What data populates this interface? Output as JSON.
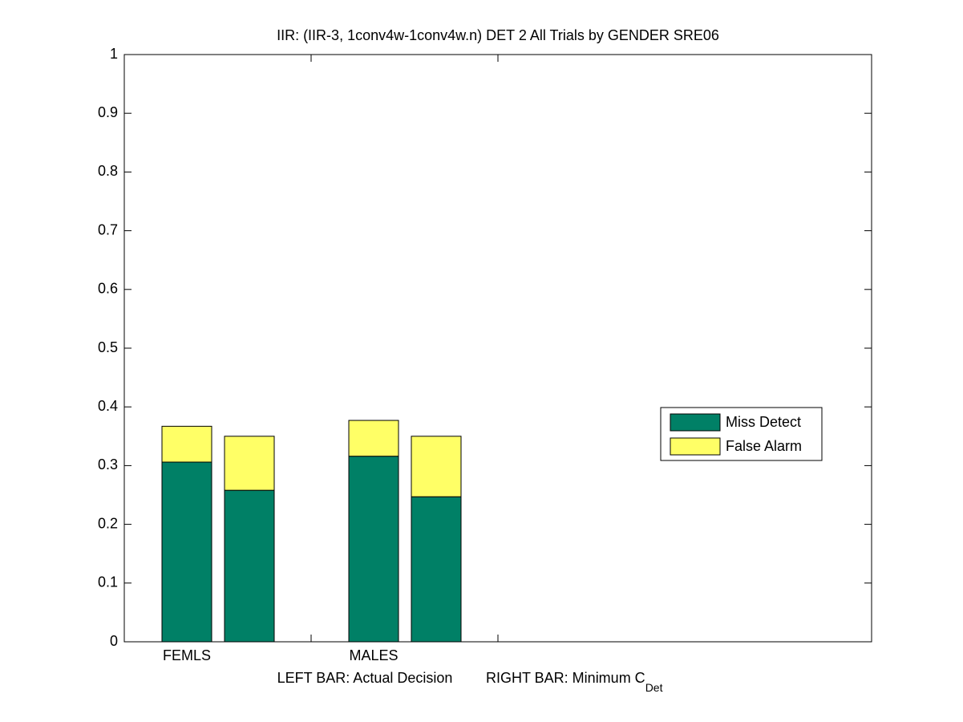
{
  "chart_data": {
    "type": "bar",
    "stacked": true,
    "title": "IIR: (IIR-3, 1conv4w-1conv4w.n) DET 2 All Trials by GENDER SRE06",
    "categories": [
      "FEMLS",
      null,
      "MALES",
      null
    ],
    "series": [
      {
        "name": "Miss Detect",
        "color": "#008066",
        "values": [
          0.306,
          0.258,
          0.316,
          0.247
        ]
      },
      {
        "name": "False Alarm",
        "color": "#ffff66",
        "values": [
          0.061,
          0.092,
          0.061,
          0.103
        ]
      }
    ],
    "xlabel": {
      "left": "LEFT BAR: Actual Decision",
      "right": "RIGHT BAR: Minimum C",
      "subscript": "Det"
    },
    "ylim": [
      0,
      1
    ],
    "yticks": [
      0,
      0.1,
      0.2,
      0.3,
      0.4,
      0.5,
      0.6,
      0.7,
      0.8,
      0.9,
      1
    ],
    "grid": false,
    "legend": "right"
  }
}
